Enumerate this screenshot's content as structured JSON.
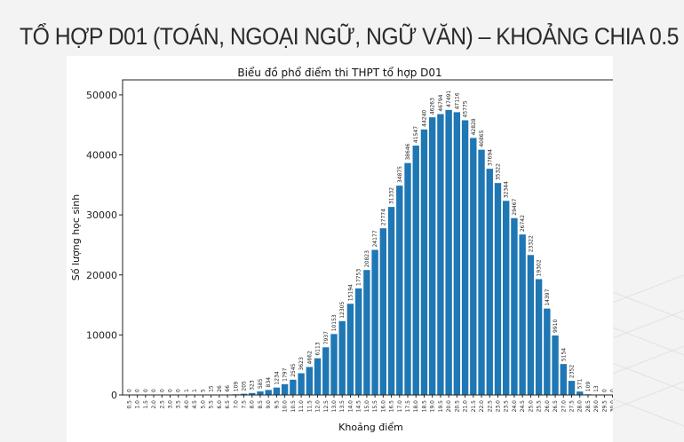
{
  "slide": {
    "title": "TỔ HỢP D01 (TOÁN, NGOẠI NGỮ, NGỮ VĂN) – KHOẢNG CHIA 0.5"
  },
  "colors": {
    "bar": "#1f77b4",
    "background": "#f3f3f3",
    "card": "#ffffff"
  },
  "chart_data": {
    "type": "bar",
    "title": "Biểu đồ phổ điểm thi THPT tổ hợp D01",
    "xlabel": "Khoảng điểm",
    "ylabel": "Số lượng học sinh",
    "ylim": [
      0,
      52500
    ],
    "yticks": [
      0,
      10000,
      20000,
      30000,
      40000,
      50000
    ],
    "grid": false,
    "legend": null,
    "categories": [
      "0.5",
      "1.0",
      "1.5",
      "2.0",
      "2.5",
      "3.0",
      "3.5",
      "4.0",
      "4.5",
      "5.0",
      "5.5",
      "6.0",
      "6.5",
      "7.0",
      "7.5",
      "8.0",
      "8.5",
      "9.0",
      "9.5",
      "10.0",
      "10.5",
      "11.0",
      "11.5",
      "12.0",
      "12.5",
      "13.0",
      "13.5",
      "14.0",
      "14.5",
      "15.0",
      "15.5",
      "16.0",
      "16.5",
      "17.0",
      "17.5",
      "18.0",
      "18.5",
      "19.0",
      "19.5",
      "20.0",
      "20.5",
      "21.0",
      "21.5",
      "22.0",
      "22.5",
      "23.0",
      "23.5",
      "24.0",
      "24.5",
      "25.0",
      "25.5",
      "26.0",
      "26.5",
      "27.0",
      "27.5",
      "28.0",
      "28.5",
      "29.0",
      "29.5",
      "30.0"
    ],
    "values": [
      0,
      0,
      0,
      0,
      0,
      0,
      0,
      1,
      1,
      5,
      15,
      26,
      66,
      109,
      205,
      323,
      585,
      834,
      1234,
      1797,
      2545,
      3623,
      4662,
      6113,
      7937,
      10153,
      12305,
      15194,
      17753,
      20823,
      24177,
      27774,
      31332,
      34875,
      38646,
      41547,
      44240,
      46263,
      46794,
      47491,
      47116,
      45775,
      42828,
      40865,
      37694,
      35322,
      32344,
      29467,
      26742,
      23322,
      19302,
      14397,
      9910,
      5154,
      2352,
      571,
      109,
      13,
      0,
      0
    ]
  }
}
